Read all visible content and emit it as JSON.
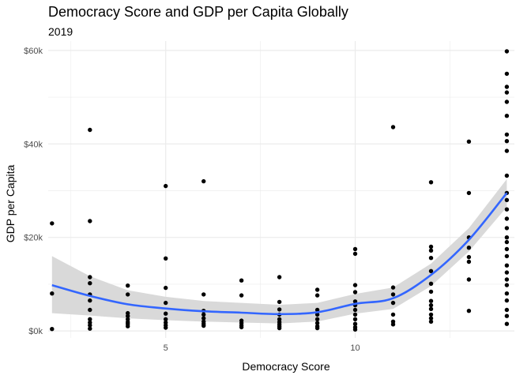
{
  "chart_data": {
    "type": "scatter",
    "title": "Democracy Score and GDP per Capita Globally",
    "subtitle": "2019",
    "xlabel": "Democracy Score",
    "ylabel": "GDP per Capita",
    "xlim": [
      1.9,
      14.2
    ],
    "ylim": [
      -1500,
      62000
    ],
    "x_ticks": [
      5,
      10
    ],
    "x_tick_labels": [
      "5",
      "10"
    ],
    "y_ticks": [
      0,
      20000,
      40000,
      60000
    ],
    "y_tick_labels": [
      "$0k",
      "$20k",
      "$40k",
      "$60k"
    ],
    "grid": true,
    "legend": "none",
    "colors": {
      "points": "#000000",
      "smooth": "#3366ff",
      "ribbon": "#d9d9d9",
      "grid": "#ebebeb"
    },
    "points": [
      [
        2,
        23000
      ],
      [
        2,
        8000
      ],
      [
        2,
        400
      ],
      [
        3,
        43000
      ],
      [
        3,
        23500
      ],
      [
        3,
        11500
      ],
      [
        3,
        10200
      ],
      [
        3,
        7800
      ],
      [
        3,
        6500
      ],
      [
        3,
        4500
      ],
      [
        3,
        2500
      ],
      [
        3,
        1800
      ],
      [
        3,
        1200
      ],
      [
        3,
        500
      ],
      [
        4,
        9700
      ],
      [
        4,
        7800
      ],
      [
        4,
        3800
      ],
      [
        4,
        3200
      ],
      [
        4,
        2500
      ],
      [
        4,
        1900
      ],
      [
        4,
        1500
      ],
      [
        4,
        1000
      ],
      [
        5,
        31000
      ],
      [
        5,
        15500
      ],
      [
        5,
        9200
      ],
      [
        5,
        6000
      ],
      [
        5,
        3700
      ],
      [
        5,
        2500
      ],
      [
        5,
        1800
      ],
      [
        5,
        1200
      ],
      [
        5,
        700
      ],
      [
        6,
        32000
      ],
      [
        6,
        7800
      ],
      [
        6,
        4300
      ],
      [
        6,
        3500
      ],
      [
        6,
        2700
      ],
      [
        6,
        2000
      ],
      [
        6,
        1500
      ],
      [
        6,
        1100
      ],
      [
        7,
        10800
      ],
      [
        7,
        7600
      ],
      [
        7,
        2200
      ],
      [
        7,
        1700
      ],
      [
        7,
        1200
      ],
      [
        7,
        800
      ],
      [
        8,
        11500
      ],
      [
        8,
        6200
      ],
      [
        8,
        4600
      ],
      [
        8,
        3500
      ],
      [
        8,
        2500
      ],
      [
        8,
        1900
      ],
      [
        8,
        1400
      ],
      [
        8,
        1000
      ],
      [
        8,
        600
      ],
      [
        9,
        8800
      ],
      [
        9,
        7600
      ],
      [
        9,
        4500
      ],
      [
        9,
        3500
      ],
      [
        9,
        2500
      ],
      [
        9,
        1700
      ],
      [
        9,
        1000
      ],
      [
        9,
        600
      ],
      [
        10,
        17500
      ],
      [
        10,
        16500
      ],
      [
        10,
        9800
      ],
      [
        10,
        8300
      ],
      [
        10,
        6300
      ],
      [
        10,
        5500
      ],
      [
        10,
        4500
      ],
      [
        10,
        3500
      ],
      [
        10,
        2500
      ],
      [
        10,
        1500
      ],
      [
        10,
        800
      ],
      [
        10,
        300
      ],
      [
        11,
        43600
      ],
      [
        11,
        9300
      ],
      [
        11,
        7800
      ],
      [
        11,
        6000
      ],
      [
        11,
        3500
      ],
      [
        11,
        2000
      ],
      [
        11,
        1400
      ],
      [
        12,
        31800
      ],
      [
        12,
        18000
      ],
      [
        12,
        17200
      ],
      [
        12,
        15600
      ],
      [
        12,
        12800
      ],
      [
        12,
        10100
      ],
      [
        12,
        8400
      ],
      [
        12,
        6400
      ],
      [
        12,
        5500
      ],
      [
        12,
        4700
      ],
      [
        12,
        3500
      ],
      [
        12,
        2700
      ],
      [
        12,
        2000
      ],
      [
        13,
        40500
      ],
      [
        13,
        29500
      ],
      [
        13,
        20000
      ],
      [
        13,
        17800
      ],
      [
        13,
        15800
      ],
      [
        13,
        14800
      ],
      [
        13,
        11000
      ],
      [
        13,
        4300
      ],
      [
        14,
        59800
      ],
      [
        14,
        55000
      ],
      [
        14,
        52200
      ],
      [
        14,
        51000
      ],
      [
        14,
        49000
      ],
      [
        14,
        46000
      ],
      [
        14,
        42000
      ],
      [
        14,
        40600
      ],
      [
        14,
        38500
      ],
      [
        14,
        33200
      ],
      [
        14,
        29500
      ],
      [
        14,
        28000
      ],
      [
        14,
        26000
      ],
      [
        14,
        24000
      ],
      [
        14,
        22000
      ],
      [
        14,
        20000
      ],
      [
        14,
        19000
      ],
      [
        14,
        17500
      ],
      [
        14,
        16000
      ],
      [
        14,
        14000
      ],
      [
        14,
        12500
      ],
      [
        14,
        11000
      ],
      [
        14,
        9800
      ],
      [
        14,
        8000
      ],
      [
        14,
        6500
      ],
      [
        14,
        4500
      ],
      [
        14,
        3200
      ],
      [
        14,
        1500
      ]
    ],
    "smooth": {
      "x": [
        2,
        3,
        4,
        5,
        6,
        7,
        8,
        9,
        10,
        11,
        12,
        13,
        14
      ],
      "y": [
        9800,
        7500,
        5700,
        4800,
        4200,
        3900,
        3600,
        4000,
        5800,
        7000,
        12000,
        19500,
        29500
      ],
      "lower": [
        3800,
        3300,
        2700,
        2300,
        2000,
        1800,
        1600,
        2000,
        3700,
        4700,
        9600,
        17000,
        26500
      ],
      "upper": [
        16000,
        11700,
        8700,
        7300,
        6400,
        6000,
        5600,
        6000,
        7900,
        9300,
        14400,
        22000,
        32500
      ]
    }
  }
}
